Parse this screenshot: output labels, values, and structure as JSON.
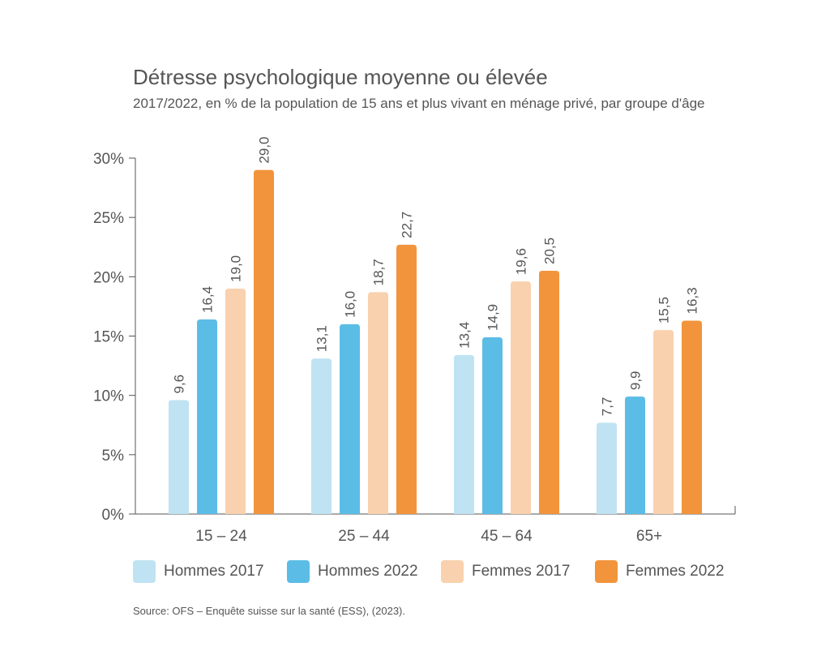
{
  "chart_data": {
    "type": "bar",
    "title": "Détresse psychologique moyenne ou élevée",
    "subtitle": "2017/2022, en % de la population de 15 ans et plus vivant en ménage privé, par groupe d'âge",
    "categories": [
      "15 – 24",
      "25 – 44",
      "45 – 64",
      "65+"
    ],
    "series": [
      {
        "name": "Hommes 2017",
        "color": "#bfe3f2",
        "values": [
          9.6,
          13.1,
          13.4,
          7.7
        ],
        "labels": [
          "9,6",
          "13,1",
          "13,4",
          "7,7"
        ]
      },
      {
        "name": "Hommes 2022",
        "color": "#5bbde6",
        "values": [
          16.4,
          16.0,
          14.9,
          9.9
        ],
        "labels": [
          "16,4",
          "16,0",
          "14,9",
          "9,9"
        ]
      },
      {
        "name": "Femmes 2017",
        "color": "#f9d1ae",
        "values": [
          19.0,
          18.7,
          19.6,
          15.5
        ],
        "labels": [
          "19,0",
          "18,7",
          "19,6",
          "15,5"
        ]
      },
      {
        "name": "Femmes 2022",
        "color": "#f2943c",
        "values": [
          29.0,
          22.7,
          20.5,
          16.3
        ],
        "labels": [
          "29,0",
          "22,7",
          "20,5",
          "16,3"
        ]
      }
    ],
    "ylim": [
      0,
      30
    ],
    "yticks": [
      0,
      5,
      10,
      15,
      20,
      25,
      30
    ],
    "ytick_labels": [
      "0%",
      "5%",
      "10%",
      "15%",
      "20%",
      "25%",
      "30%"
    ],
    "grid": false,
    "legend_position": "bottom"
  },
  "source": "Source: OFS – Enquête suisse sur la santé (ESS), (2023)."
}
